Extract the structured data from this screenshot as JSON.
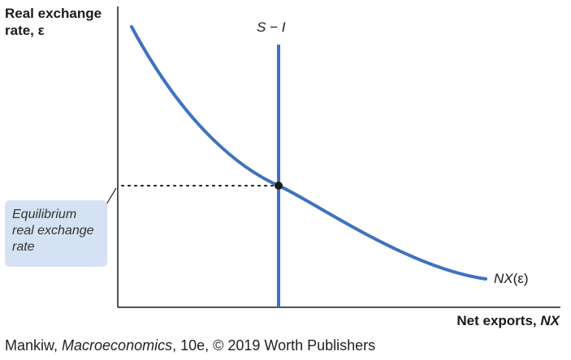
{
  "diagram": {
    "y_axis_label_line1": "Real exchange",
    "y_axis_label_line2": "rate, ε",
    "x_axis_label_prefix": "Net exports, ",
    "x_axis_label_var": "NX",
    "curve_label_prefix": "NX",
    "curve_label_arg": "(ε)",
    "vertical_line_label": "S − I",
    "callout_line1": "Equilibrium",
    "callout_line2": "real exchange",
    "callout_line3": "rate",
    "colors": {
      "curve": "#3f73bf",
      "callout_bg": "#d5e2f3",
      "axis": "#1a1a1a",
      "point": "#1a1a1a"
    }
  },
  "credit": {
    "author": "Mankiw, ",
    "title": "Macroeconomics",
    "rest": ", 10e, © 2019 Worth Publishers"
  }
}
